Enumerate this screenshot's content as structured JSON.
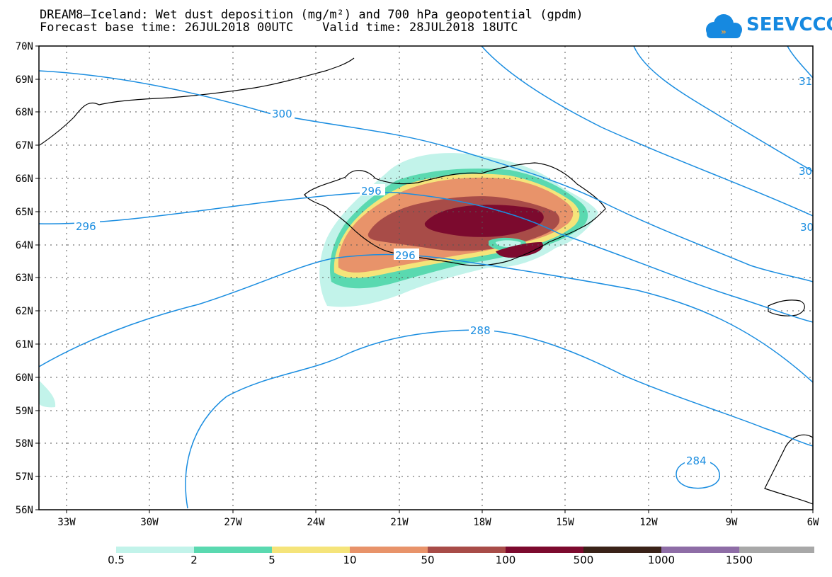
{
  "title_line1": "DREAM8–Iceland: Wet dust deposition (mg/m²) and 700 hPa geopotential (gpdm)",
  "title_line2": "Forecast base time: 26JUL2018 00UTC    Valid time: 28JUL2018 18UTC",
  "logo_text": "SEEVCCC",
  "map": {
    "lon_range": [
      -34.5,
      -6
    ],
    "lat_range": [
      56,
      70
    ],
    "lat_ticks": [
      "70N",
      "69N",
      "68N",
      "67N",
      "66N",
      "65N",
      "64N",
      "63N",
      "62N",
      "61N",
      "60N",
      "59N",
      "58N",
      "57N",
      "56N"
    ],
    "lon_ticks": [
      "33W",
      "30W",
      "27W",
      "24W",
      "21W",
      "18W",
      "15W",
      "12W",
      "9W",
      "6W"
    ],
    "contour_labels": [
      "300",
      "296",
      "296",
      "296",
      "288",
      "284",
      "31",
      "30",
      "30"
    ]
  },
  "legend": {
    "labels": [
      "0.5",
      "2",
      "5",
      "10",
      "50",
      "100",
      "500",
      "1000",
      "1500"
    ],
    "colors": [
      "#c2f3ea",
      "#5ad9b0",
      "#f5e47a",
      "#e8936a",
      "#a84c48",
      "#7c0a2e",
      "#3a2218",
      "#8e6da6",
      "#a8a8a8"
    ]
  }
}
